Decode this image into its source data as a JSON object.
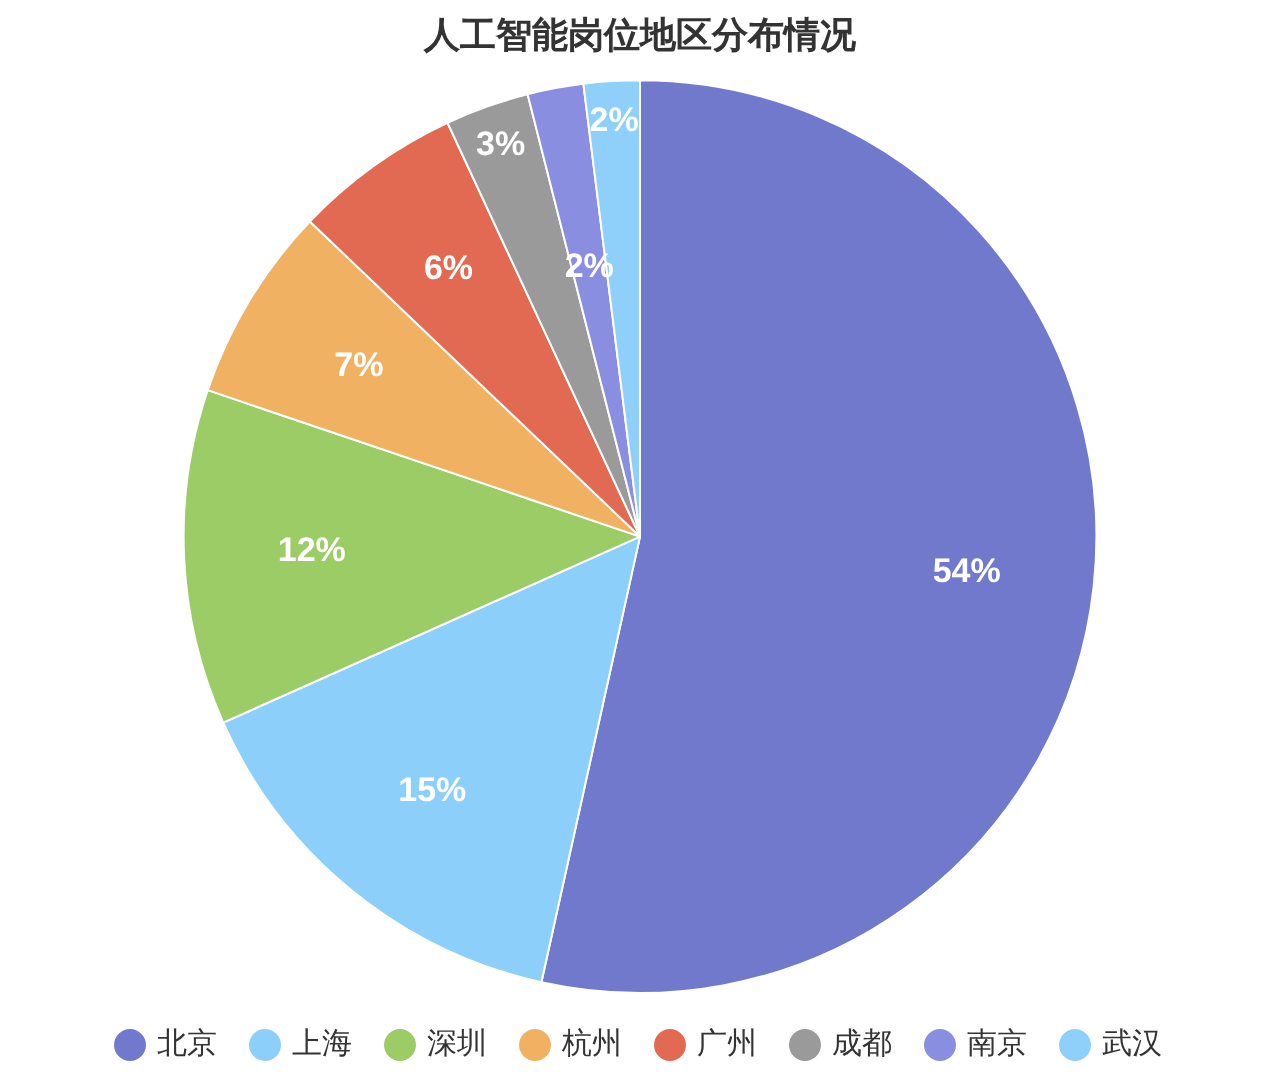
{
  "chart_data": {
    "type": "pie",
    "title": "人工智能岗位地区分布情况",
    "categories": [
      "北京",
      "上海",
      "深圳",
      "杭州",
      "广州",
      "成都",
      "南京",
      "武汉"
    ],
    "values": [
      54,
      15,
      12,
      7,
      6,
      3,
      2,
      2
    ],
    "value_labels": [
      "54%",
      "15%",
      "12%",
      "7%",
      "6%",
      "3%",
      "2%",
      "2%"
    ],
    "colors": [
      "#7079cc",
      "#8ccffa",
      "#9bcc66",
      "#f0b262",
      "#e26a52",
      "#9a9a9a",
      "#8a8ee0",
      "#8fd0fb"
    ],
    "legend": "bottom"
  }
}
